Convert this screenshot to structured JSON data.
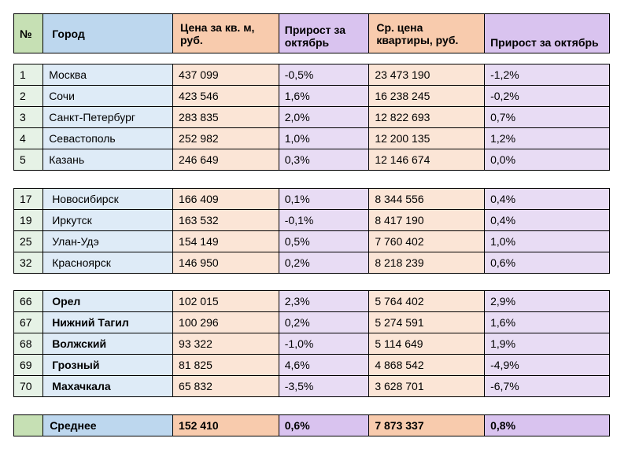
{
  "colors": {
    "num_header": "#c6e0b4",
    "city_header": "#bdd7ee",
    "price_header": "#f8cbad",
    "growth_header": "#d9c3ef",
    "num_cell": "#e6f2e6",
    "city_cell": "#deebf7",
    "price_cell": "#fbe5d6",
    "growth_cell": "#e8dcf4"
  },
  "header": {
    "num": "№",
    "city": "Город",
    "price_sqm": "Цена за кв. м, руб.",
    "growth_sqm": "Прирост за октябрь",
    "avg_price": "Ср. цена квартиры, руб.",
    "growth_avg": "Прирост за октябрь"
  },
  "groups": [
    [
      [
        "1",
        "Москва",
        "437 099",
        "-0,5%",
        "23 473 190",
        "-1,2%"
      ],
      [
        "2",
        "Сочи",
        "423 546",
        "1,6%",
        "16 238 245",
        "-0,2%"
      ],
      [
        "3",
        "Санкт-Петербург",
        "283 835",
        "2,0%",
        "12 822 693",
        "0,7%"
      ],
      [
        "4",
        "Севастополь",
        "252 982",
        "1,0%",
        "12 200 135",
        "1,2%"
      ],
      [
        "5",
        "Казань",
        "246 649",
        "0,3%",
        "12 146 674",
        "0,0%"
      ]
    ],
    [
      [
        "17",
        "Новосибирск",
        "166 409",
        "0,1%",
        "8 344 556",
        "0,4%"
      ],
      [
        "19",
        "Иркутск",
        "163 532",
        "-0,1%",
        "8 417 190",
        "0,4%"
      ],
      [
        "25",
        "Улан-Удэ",
        "154 149",
        "0,5%",
        "7 760 402",
        "1,0%"
      ],
      [
        "32",
        "Красноярск",
        "146 950",
        "0,2%",
        "8 218 239",
        "0,6%"
      ]
    ],
    [
      [
        "66",
        "Орел",
        "102 015",
        "2,3%",
        "5 764 402",
        "2,9%"
      ],
      [
        "67",
        "Нижний Тагил",
        "100 296",
        "0,2%",
        "5 274 591",
        "1,6%"
      ],
      [
        "68",
        "Волжский",
        "93 322",
        "-1,0%",
        "5 114 649",
        "1,9%"
      ],
      [
        "69",
        "Грозный",
        "81 825",
        "4,6%",
        "4 868 542",
        "-4,9%"
      ],
      [
        "70",
        "Махачкала",
        "65 832",
        "-3,5%",
        "3 628 701",
        "-6,7%"
      ]
    ]
  ],
  "footer": {
    "num": "",
    "city": "Среднее",
    "price_sqm": "152 410",
    "growth_sqm": "0,6%",
    "avg_price": "7 873 337",
    "growth_avg": "0,8%"
  }
}
